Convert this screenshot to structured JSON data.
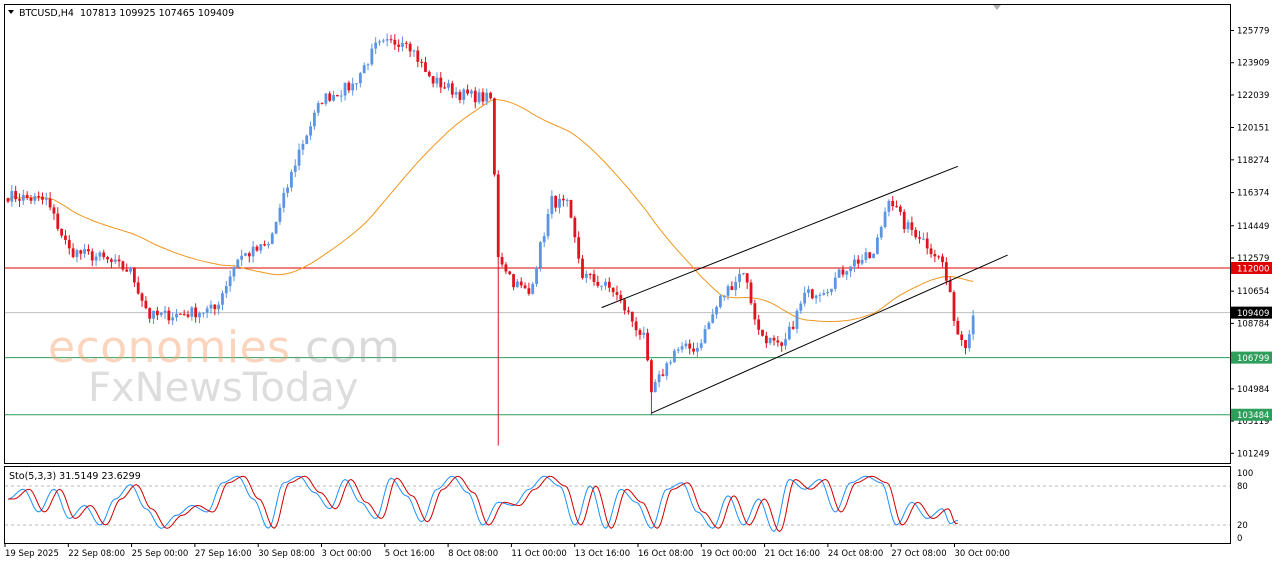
{
  "header": {
    "symbol": "BTCUSD,H4",
    "ohlc": "107813 109925 107465 109409"
  },
  "watermark": {
    "brand": "economies",
    "brand_suffix": ".com",
    "brand2": "FxNewsToday"
  },
  "stochastic": {
    "label": "Sto(5,3,3) 31.5149 23.6299",
    "levels_text": [
      "100",
      "80",
      "20",
      "0"
    ],
    "main_color": "#1e90ff",
    "signal_color": "#d00000"
  },
  "chart_data": {
    "type": "candlestick",
    "symbol": "BTCUSD",
    "timeframe": "H4",
    "y_ticks": [
      "125779",
      "123909",
      "122039",
      "120151",
      "118274",
      "116374",
      "114449",
      "112579",
      "110654",
      "108784",
      "104984",
      "103119",
      "101249"
    ],
    "x_labels": [
      "19 Sep 2025",
      "22 Sep 08:00",
      "25 Sep 00:00",
      "27 Sep 16:00",
      "30 Sep 08:00",
      "3 Oct 00:00",
      "5 Oct 16:00",
      "8 Oct 08:00",
      "11 Oct 00:00",
      "13 Oct 16:00",
      "16 Oct 08:00",
      "19 Oct 00:00",
      "21 Oct 16:00",
      "24 Oct 08:00",
      "27 Oct 08:00",
      "30 Oct 00:00"
    ],
    "ylim": [
      100800,
      127200
    ],
    "horizontal_levels": [
      {
        "value": 112000,
        "label": "112000",
        "color": "#e00000"
      },
      {
        "value": 109409,
        "label": "109409",
        "color": "#000000",
        "current": true
      },
      {
        "value": 106799,
        "label": "106799",
        "color": "#2e9e5b"
      },
      {
        "value": 103484,
        "label": "103484",
        "color": "#2e9e5b"
      }
    ],
    "channel_lines": [
      {
        "role": "upper",
        "from": {
          "candle": 155,
          "price": 109700
        },
        "to": {
          "candle": 248,
          "price": 117900
        }
      },
      {
        "role": "lower",
        "from": {
          "candle": 168,
          "price": 103580
        },
        "to": {
          "candle": 261,
          "price": 112750
        }
      }
    ],
    "moving_average": {
      "color": "#f0961e"
    },
    "colors": {
      "bull": "#5b95e3",
      "bear": "#e0141e"
    },
    "path_points": [
      [
        0,
        116200
      ],
      [
        10,
        115900
      ],
      [
        16,
        113000
      ],
      [
        24,
        112600
      ],
      [
        32,
        111800
      ],
      [
        37,
        109200
      ],
      [
        44,
        109300
      ],
      [
        54,
        109600
      ],
      [
        60,
        112600
      ],
      [
        68,
        113300
      ],
      [
        76,
        118800
      ],
      [
        82,
        121800
      ],
      [
        90,
        122600
      ],
      [
        96,
        124800
      ],
      [
        104,
        125300
      ],
      [
        110,
        123000
      ],
      [
        118,
        122100
      ],
      [
        126,
        121800
      ],
      [
        128,
        112800
      ],
      [
        132,
        111200
      ],
      [
        136,
        110500
      ],
      [
        142,
        115900
      ],
      [
        146,
        115600
      ],
      [
        150,
        111600
      ],
      [
        158,
        110700
      ],
      [
        166,
        107900
      ],
      [
        168,
        104700
      ],
      [
        174,
        107200
      ],
      [
        180,
        107400
      ],
      [
        186,
        110200
      ],
      [
        192,
        111900
      ],
      [
        196,
        108300
      ],
      [
        202,
        107200
      ],
      [
        208,
        110400
      ],
      [
        214,
        110900
      ],
      [
        220,
        112300
      ],
      [
        226,
        112700
      ],
      [
        230,
        116200
      ],
      [
        234,
        114500
      ],
      [
        238,
        113900
      ],
      [
        244,
        112300
      ],
      [
        248,
        108200
      ],
      [
        250,
        107700
      ],
      [
        252,
        109300
      ]
    ],
    "stoch_path": [
      [
        0,
        60
      ],
      [
        4,
        75
      ],
      [
        8,
        40
      ],
      [
        12,
        75
      ],
      [
        16,
        30
      ],
      [
        20,
        50
      ],
      [
        24,
        20
      ],
      [
        28,
        60
      ],
      [
        32,
        82
      ],
      [
        36,
        45
      ],
      [
        40,
        15
      ],
      [
        44,
        35
      ],
      [
        48,
        50
      ],
      [
        52,
        40
      ],
      [
        56,
        85
      ],
      [
        60,
        95
      ],
      [
        64,
        60
      ],
      [
        68,
        15
      ],
      [
        72,
        85
      ],
      [
        76,
        95
      ],
      [
        80,
        70
      ],
      [
        84,
        45
      ],
      [
        88,
        90
      ],
      [
        92,
        55
      ],
      [
        96,
        30
      ],
      [
        100,
        92
      ],
      [
        104,
        65
      ],
      [
        108,
        25
      ],
      [
        112,
        75
      ],
      [
        116,
        95
      ],
      [
        120,
        70
      ],
      [
        124,
        20
      ],
      [
        128,
        55
      ],
      [
        132,
        50
      ],
      [
        136,
        75
      ],
      [
        140,
        95
      ],
      [
        144,
        80
      ],
      [
        148,
        20
      ],
      [
        152,
        80
      ],
      [
        156,
        15
      ],
      [
        160,
        75
      ],
      [
        164,
        55
      ],
      [
        168,
        15
      ],
      [
        172,
        75
      ],
      [
        176,
        85
      ],
      [
        180,
        40
      ],
      [
        184,
        15
      ],
      [
        188,
        65
      ],
      [
        192,
        20
      ],
      [
        196,
        60
      ],
      [
        200,
        10
      ],
      [
        204,
        90
      ],
      [
        208,
        75
      ],
      [
        212,
        90
      ],
      [
        216,
        40
      ],
      [
        220,
        85
      ],
      [
        224,
        95
      ],
      [
        228,
        85
      ],
      [
        232,
        20
      ],
      [
        236,
        55
      ],
      [
        240,
        30
      ],
      [
        244,
        45
      ],
      [
        246,
        22
      ],
      [
        248,
        27
      ]
    ]
  }
}
